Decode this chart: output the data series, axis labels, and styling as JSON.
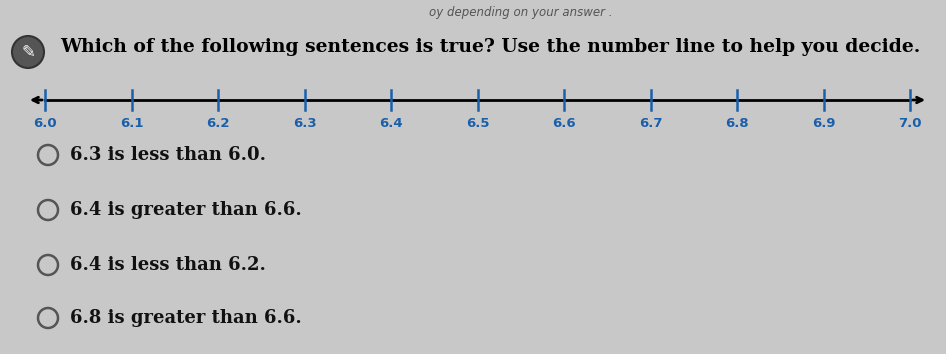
{
  "title": "Which of the following sentences is true? Use the number line to help you decide.",
  "title_color": "#000000",
  "title_fontsize": 13.5,
  "number_line": {
    "tick_values": [
      6.0,
      6.1,
      6.2,
      6.3,
      6.4,
      6.5,
      6.6,
      6.7,
      6.8,
      6.9,
      7.0
    ],
    "line_color": "#000000",
    "tick_color": "#1a5faa",
    "label_color": "#1a5faa",
    "label_fontsize": 9.5
  },
  "answer_choices": [
    "6.3 is less than 6.0.",
    "6.4 is greater than 6.6.",
    "6.4 is less than 6.2.",
    "6.8 is greater than 6.6."
  ],
  "answer_fontsize": 13,
  "answer_color": "#111111",
  "background_color": "#c8c8c8",
  "circle_color": "#555555",
  "header_text": "oy depending on your answer .",
  "header_color": "#555555",
  "header_fontsize": 8.5,
  "icon_facecolor": "#555555",
  "icon_edgecolor": "#333333"
}
